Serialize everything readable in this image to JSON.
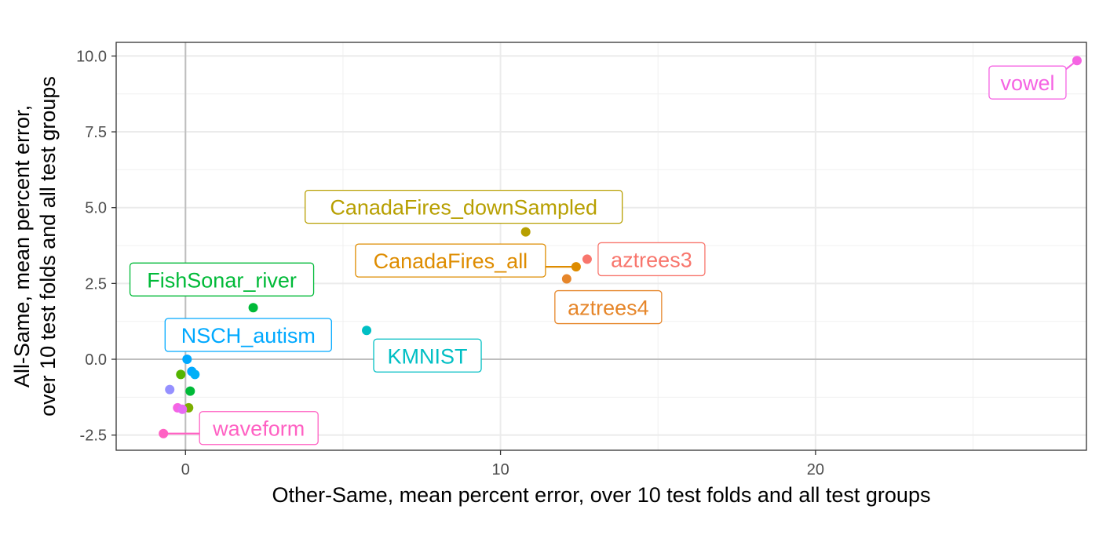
{
  "chart_data": {
    "type": "scatter",
    "xlabel": "Other-Same, mean percent error, over 10 test folds and all test groups",
    "ylabel_lines": [
      "All-Same, mean percent error,",
      "over 10 test folds and all test groups"
    ],
    "xlim": [
      -2.2,
      28.6
    ],
    "ylim": [
      -3.0,
      10.45
    ],
    "x_ticks": [
      0,
      10,
      20
    ],
    "x_tick_labels": [
      "0",
      "10",
      "20"
    ],
    "y_ticks": [
      -2.5,
      0.0,
      2.5,
      5.0,
      7.5,
      10.0
    ],
    "y_tick_labels": [
      "-2.5",
      "0.0",
      "2.5",
      "5.0",
      "7.5",
      "10.0"
    ],
    "grid": true,
    "reference_lines": {
      "x": 0,
      "y": 0
    },
    "points": [
      {
        "x": 28.3,
        "y": 9.85,
        "color": "#F564E3",
        "label": "vowel"
      },
      {
        "x": 10.8,
        "y": 4.2,
        "color": "#B79F00",
        "label": "CanadaFires_downSampled"
      },
      {
        "x": 12.4,
        "y": 3.05,
        "color": "#DE8C00",
        "label": "CanadaFires_all"
      },
      {
        "x": 12.75,
        "y": 3.3,
        "color": "#F8766D",
        "label": "aztrees3"
      },
      {
        "x": 12.1,
        "y": 2.65,
        "color": "#E6862A",
        "label": "aztrees4"
      },
      {
        "x": 2.15,
        "y": 1.7,
        "color": "#00BA38",
        "label": "FishSonar_river"
      },
      {
        "x": 5.75,
        "y": 0.95,
        "color": "#00BFC4",
        "label": "KMNIST"
      },
      {
        "x": 0.05,
        "y": 0.0,
        "color": "#00A9FF",
        "label": "NSCH_autism"
      },
      {
        "x": -0.7,
        "y": -2.45,
        "color": "#FF61C3",
        "label": "waveform"
      },
      {
        "x": 0.2,
        "y": -0.4,
        "color": "#00A9FF",
        "label": ""
      },
      {
        "x": 0.3,
        "y": -0.5,
        "color": "#00B0F6",
        "label": ""
      },
      {
        "x": -0.15,
        "y": -0.5,
        "color": "#53B400",
        "label": ""
      },
      {
        "x": 0.15,
        "y": -1.05,
        "color": "#00BA38",
        "label": ""
      },
      {
        "x": -0.5,
        "y": -1.0,
        "color": "#9590FF",
        "label": ""
      },
      {
        "x": -0.25,
        "y": -1.6,
        "color": "#F564E3",
        "label": ""
      },
      {
        "x": 0.1,
        "y": -1.6,
        "color": "#7CAE00",
        "label": ""
      },
      {
        "x": -0.1,
        "y": -1.65,
        "color": "#E76BF3",
        "label": ""
      }
    ]
  }
}
